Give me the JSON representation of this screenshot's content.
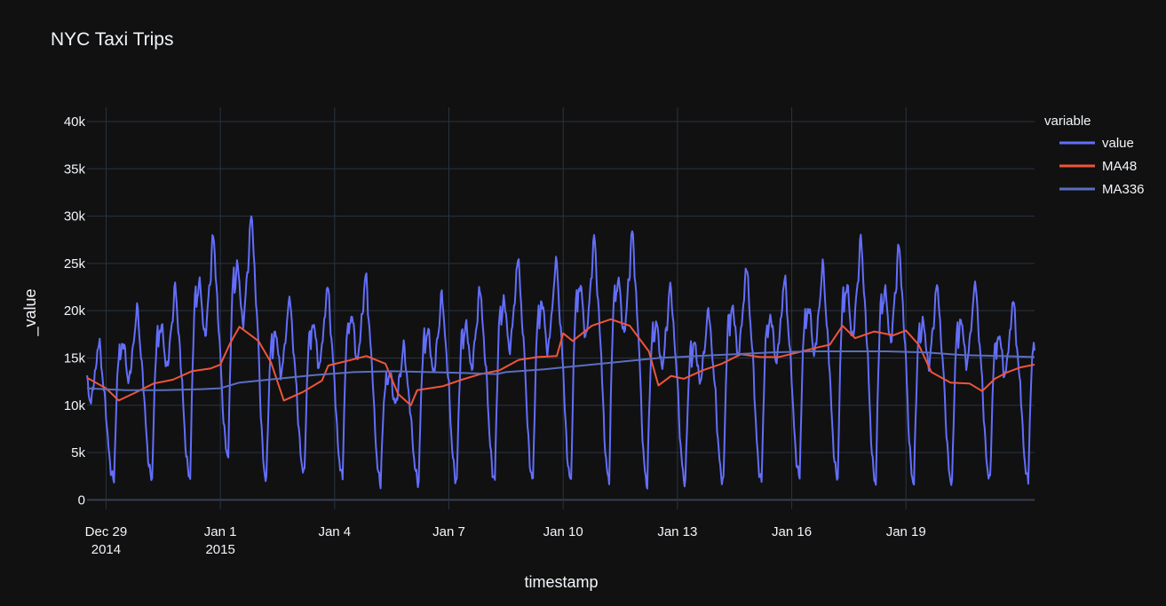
{
  "chart_data": {
    "type": "line",
    "title": "NYC Taxi Trips",
    "xlabel": "timestamp",
    "ylabel": "_value",
    "ylim": [
      -1000,
      41500
    ],
    "xlim": [
      "2014-12-28 12:00",
      "2015-01-22 09:00"
    ],
    "grid": true,
    "legend": {
      "title": "variable",
      "placement": "right"
    },
    "y_ticks": [
      {
        "value": 0,
        "label": "0"
      },
      {
        "value": 5000,
        "label": "5k"
      },
      {
        "value": 10000,
        "label": "10k"
      },
      {
        "value": 15000,
        "label": "15k"
      },
      {
        "value": 20000,
        "label": "20k"
      },
      {
        "value": 25000,
        "label": "25k"
      },
      {
        "value": 30000,
        "label": "30k"
      },
      {
        "value": 35000,
        "label": "35k"
      },
      {
        "value": 40000,
        "label": "40k"
      }
    ],
    "x_ticks": [
      {
        "value": "2014-12-29",
        "label": "Dec 29",
        "label2": "2014"
      },
      {
        "value": "2015-01-01",
        "label": "Jan 1",
        "label2": "2015"
      },
      {
        "value": "2015-01-04",
        "label": "Jan 4",
        "label2": ""
      },
      {
        "value": "2015-01-07",
        "label": "Jan 7",
        "label2": ""
      },
      {
        "value": "2015-01-10",
        "label": "Jan 10",
        "label2": ""
      },
      {
        "value": "2015-01-13",
        "label": "Jan 13",
        "label2": ""
      },
      {
        "value": "2015-01-16",
        "label": "Jan 16",
        "label2": ""
      },
      {
        "value": "2015-01-19",
        "label": "Jan 19",
        "label2": ""
      }
    ],
    "series": [
      {
        "name": "value",
        "color": "#636efa",
        "daily": [
          {
            "date": "2014-12-28",
            "low": 2200,
            "high": 16800
          },
          {
            "date": "2014-12-29",
            "low": 2100,
            "high": 20300
          },
          {
            "date": "2014-12-30",
            "low": 2300,
            "high": 22500
          },
          {
            "date": "2014-12-31",
            "low": 2400,
            "high": 28000
          },
          {
            "date": "2015-01-01",
            "low": 4700,
            "high": 30200
          },
          {
            "date": "2015-01-02",
            "low": 2100,
            "high": 21500
          },
          {
            "date": "2015-01-03",
            "low": 2800,
            "high": 22700
          },
          {
            "date": "2015-01-04",
            "low": 2500,
            "high": 23800
          },
          {
            "date": "2015-01-05",
            "low": 1800,
            "high": 16300
          },
          {
            "date": "2015-01-06",
            "low": 1900,
            "high": 21800
          },
          {
            "date": "2015-01-07",
            "low": 2000,
            "high": 22500
          },
          {
            "date": "2015-01-08",
            "low": 2100,
            "high": 25700
          },
          {
            "date": "2015-01-09",
            "low": 2100,
            "high": 25500
          },
          {
            "date": "2015-01-10",
            "low": 2000,
            "high": 27800
          },
          {
            "date": "2015-01-11",
            "low": 2100,
            "high": 28400
          },
          {
            "date": "2015-01-12",
            "low": 1700,
            "high": 22700
          },
          {
            "date": "2015-01-13",
            "low": 1900,
            "high": 20200
          },
          {
            "date": "2015-01-14",
            "low": 1900,
            "high": 24800
          },
          {
            "date": "2015-01-15",
            "low": 2000,
            "high": 23600
          },
          {
            "date": "2015-01-16",
            "low": 2500,
            "high": 24900
          },
          {
            "date": "2015-01-17",
            "low": 2300,
            "high": 27600
          },
          {
            "date": "2015-01-18",
            "low": 1800,
            "high": 27000
          },
          {
            "date": "2015-01-19",
            "low": 1800,
            "high": 22900
          },
          {
            "date": "2015-01-20",
            "low": 1700,
            "high": 23100
          },
          {
            "date": "2015-01-21",
            "low": 2100,
            "high": 21200
          }
        ]
      },
      {
        "name": "MA48",
        "color": "#ef553b",
        "points": [
          [
            "2014-12-28 12:00",
            12900
          ],
          [
            "2014-12-29 00:00",
            11800
          ],
          [
            "2014-12-29 08:00",
            10500
          ],
          [
            "2014-12-29 18:00",
            11300
          ],
          [
            "2014-12-30 06:00",
            12300
          ],
          [
            "2014-12-30 18:00",
            12700
          ],
          [
            "2014-12-31 06:00",
            13600
          ],
          [
            "2014-12-31 18:00",
            13900
          ],
          [
            "2015-01-01 00:00",
            14300
          ],
          [
            "2015-01-01 06:00",
            16500
          ],
          [
            "2015-01-01 12:00",
            18300
          ],
          [
            "2015-01-02 00:00",
            16800
          ],
          [
            "2015-01-02 08:00",
            14500
          ],
          [
            "2015-01-02 16:00",
            10500
          ],
          [
            "2015-01-03 04:00",
            11400
          ],
          [
            "2015-01-03 16:00",
            12600
          ],
          [
            "2015-01-03 20:00",
            14200
          ],
          [
            "2015-01-04 08:00",
            14700
          ],
          [
            "2015-01-04 20:00",
            15200
          ],
          [
            "2015-01-05 08:00",
            14400
          ],
          [
            "2015-01-05 16:00",
            11200
          ],
          [
            "2015-01-06 00:00",
            10000
          ],
          [
            "2015-01-06 04:00",
            11600
          ],
          [
            "2015-01-06 20:00",
            12000
          ],
          [
            "2015-01-07 08:00",
            12700
          ],
          [
            "2015-01-07 20:00",
            13300
          ],
          [
            "2015-01-08 08:00",
            13700
          ],
          [
            "2015-01-08 20:00",
            14800
          ],
          [
            "2015-01-09 08:00",
            15100
          ],
          [
            "2015-01-09 20:00",
            15200
          ],
          [
            "2015-01-10 00:00",
            17600
          ],
          [
            "2015-01-10 06:00",
            16800
          ],
          [
            "2015-01-10 18:00",
            18400
          ],
          [
            "2015-01-11 06:00",
            19100
          ],
          [
            "2015-01-11 18:00",
            18400
          ],
          [
            "2015-01-12 06:00",
            15700
          ],
          [
            "2015-01-12 12:00",
            12100
          ],
          [
            "2015-01-12 20:00",
            13100
          ],
          [
            "2015-01-13 04:00",
            12800
          ],
          [
            "2015-01-13 16:00",
            13700
          ],
          [
            "2015-01-14 04:00",
            14400
          ],
          [
            "2015-01-14 16:00",
            15400
          ],
          [
            "2015-01-15 04:00",
            15100
          ],
          [
            "2015-01-15 16:00",
            15100
          ],
          [
            "2015-01-16 04:00",
            15600
          ],
          [
            "2015-01-16 16:00",
            16100
          ],
          [
            "2015-01-17 00:00",
            16400
          ],
          [
            "2015-01-17 08:00",
            18400
          ],
          [
            "2015-01-17 16:00",
            17100
          ],
          [
            "2015-01-18 04:00",
            17800
          ],
          [
            "2015-01-18 16:00",
            17400
          ],
          [
            "2015-01-19 00:00",
            17900
          ],
          [
            "2015-01-19 08:00",
            16400
          ],
          [
            "2015-01-19 16:00",
            13500
          ],
          [
            "2015-01-20 04:00",
            12400
          ],
          [
            "2015-01-20 16:00",
            12300
          ],
          [
            "2015-01-21 00:00",
            11500
          ],
          [
            "2015-01-21 08:00",
            12800
          ],
          [
            "2015-01-21 16:00",
            13500
          ],
          [
            "2015-01-22 00:00",
            14000
          ],
          [
            "2015-01-22 09:00",
            14300
          ]
        ]
      },
      {
        "name": "MA336",
        "color": "#5a6ebf",
        "points": [
          [
            "2014-12-28 12:00",
            11800
          ],
          [
            "2014-12-29 12:00",
            11600
          ],
          [
            "2014-12-30 12:00",
            11600
          ],
          [
            "2014-12-31 12:00",
            11700
          ],
          [
            "2015-01-01 00:00",
            11800
          ],
          [
            "2015-01-01 12:00",
            12400
          ],
          [
            "2015-01-02 12:00",
            12800
          ],
          [
            "2015-01-03 12:00",
            13200
          ],
          [
            "2015-01-04 12:00",
            13500
          ],
          [
            "2015-01-05 12:00",
            13600
          ],
          [
            "2015-01-06 12:00",
            13500
          ],
          [
            "2015-01-07 12:00",
            13400
          ],
          [
            "2015-01-08 06:00",
            13300
          ],
          [
            "2015-01-08 12:00",
            13500
          ],
          [
            "2015-01-09 12:00",
            13800
          ],
          [
            "2015-01-10 12:00",
            14200
          ],
          [
            "2015-01-11 12:00",
            14600
          ],
          [
            "2015-01-12 12:00",
            15000
          ],
          [
            "2015-01-13 12:00",
            15200
          ],
          [
            "2015-01-14 12:00",
            15400
          ],
          [
            "2015-01-15 12:00",
            15600
          ],
          [
            "2015-01-16 12:00",
            15700
          ],
          [
            "2015-01-17 12:00",
            15700
          ],
          [
            "2015-01-18 12:00",
            15700
          ],
          [
            "2015-01-19 12:00",
            15600
          ],
          [
            "2015-01-20 12:00",
            15300
          ],
          [
            "2015-01-21 12:00",
            15200
          ],
          [
            "2015-01-22 09:00",
            15100
          ]
        ]
      }
    ]
  }
}
